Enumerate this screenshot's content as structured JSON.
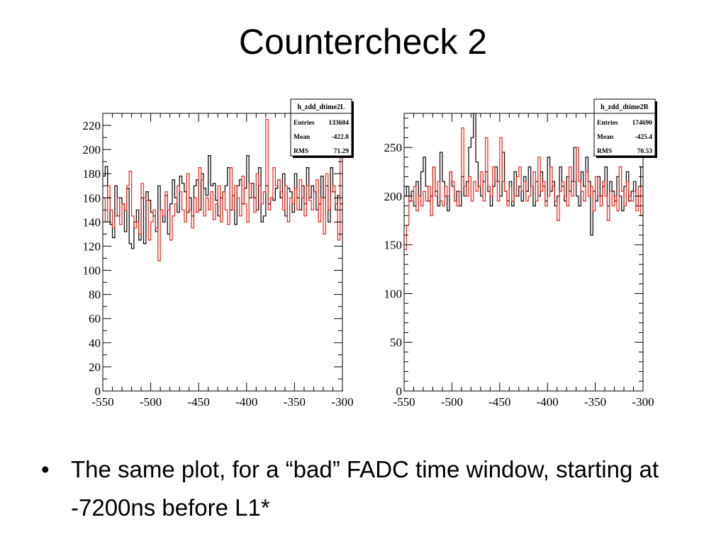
{
  "slide": {
    "title": "Countercheck 2",
    "bullet": "The same plot, for a “bad” FADC time window, starting at -7200ns before L1*"
  },
  "colors": {
    "series_black": "#111111",
    "series_red": "#e8342c",
    "frame": "#000000"
  },
  "chart_data": [
    {
      "type": "histogram",
      "title": "",
      "xlabel": "",
      "ylabel": "",
      "xlim": [
        -550,
        -300
      ],
      "ylim": [
        0,
        230
      ],
      "xticks": [
        -550,
        -500,
        -450,
        -400,
        -350,
        -300
      ],
      "yticks": [
        0,
        20,
        40,
        60,
        80,
        100,
        120,
        140,
        160,
        180,
        200,
        220
      ],
      "stats_box": {
        "name": "h_zdd_dtime2L",
        "rows": [
          {
            "label": "Entries",
            "value": "133604"
          },
          {
            "label": "Mean",
            "value": "-422.8"
          },
          {
            "label": "RMS",
            "value": "71.29"
          }
        ]
      },
      "bins": {
        "start": -550,
        "width": 2.5
      },
      "series": [
        {
          "color": "black",
          "values": [
            178,
            186,
            160,
            138,
            127,
            170,
            145,
            160,
            155,
            132,
            168,
            122,
            118,
            140,
            150,
            125,
            160,
            122,
            165,
            158,
            148,
            145,
            132,
            170,
            150,
            140,
            162,
            130,
            155,
            175,
            160,
            148,
            178,
            172,
            165,
            148,
            160,
            145,
            170,
            175,
            150,
            180,
            168,
            162,
            195,
            170,
            172,
            158,
            145,
            160,
            165,
            170,
            185,
            150,
            162,
            138,
            170,
            175,
            155,
            168,
            195,
            160,
            172,
            160,
            150,
            185,
            140,
            145,
            170,
            155,
            160,
            158,
            168,
            175,
            160,
            180,
            145,
            168,
            165,
            148,
            180,
            160,
            150,
            170,
            155,
            185,
            160,
            170,
            165,
            150,
            155,
            178,
            160,
            170,
            140,
            185,
            165,
            150,
            162,
            155
          ]
        },
        {
          "color": "red",
          "values": [
            160,
            140,
            170,
            150,
            135,
            145,
            160,
            138,
            155,
            150,
            170,
            182,
            145,
            135,
            140,
            130,
            172,
            160,
            158,
            125,
            140,
            150,
            135,
            108,
            150,
            145,
            165,
            150,
            125,
            145,
            155,
            170,
            165,
            150,
            140,
            180,
            150,
            135,
            160,
            148,
            185,
            175,
            145,
            160,
            150,
            165,
            142,
            155,
            170,
            140,
            165,
            150,
            138,
            185,
            150,
            170,
            160,
            145,
            178,
            155,
            140,
            172,
            160,
            148,
            180,
            170,
            155,
            165,
            225,
            150,
            160,
            185,
            170,
            175,
            165,
            150,
            170,
            140,
            160,
            155,
            168,
            150,
            175,
            160,
            145,
            170,
            158,
            150,
            165,
            175,
            140,
            160,
            130,
            180,
            150,
            165,
            170,
            155,
            125,
            200
          ]
        }
      ]
    },
    {
      "type": "histogram",
      "title": "",
      "xlabel": "",
      "ylabel": "",
      "xlim": [
        -550,
        -300
      ],
      "ylim": [
        0,
        285
      ],
      "xticks": [
        -550,
        -500,
        -450,
        -400,
        -350,
        -300
      ],
      "yticks": [
        0,
        50,
        100,
        150,
        200,
        250
      ],
      "stats_box": {
        "name": "h_zdd_dtime2R",
        "rows": [
          {
            "label": "Entries",
            "value": "174690"
          },
          {
            "label": "Mean",
            "value": "-425.4"
          },
          {
            "label": "RMS",
            "value": "70.53"
          }
        ]
      },
      "bins": {
        "start": -550,
        "width": 2.5
      },
      "series": [
        {
          "color": "black",
          "values": [
            200,
            210,
            195,
            205,
            190,
            215,
            200,
            225,
            240,
            210,
            195,
            200,
            230,
            205,
            190,
            245,
            215,
            200,
            185,
            225,
            210,
            195,
            205,
            190,
            220,
            200,
            215,
            250,
            260,
            285,
            235,
            210,
            200,
            215,
            225,
            205,
            190,
            210,
            230,
            215,
            200,
            245,
            205,
            195,
            215,
            190,
            225,
            200,
            210,
            195,
            220,
            205,
            230,
            210,
            190,
            215,
            200,
            225,
            210,
            195,
            240,
            205,
            215,
            190,
            200,
            230,
            210,
            195,
            220,
            205,
            215,
            250,
            200,
            190,
            225,
            210,
            240,
            215,
            160,
            205,
            195,
            220,
            200,
            210,
            230,
            190,
            215,
            205,
            195,
            220,
            200,
            185,
            210,
            225,
            195,
            205,
            215,
            190,
            200,
            230
          ]
        },
        {
          "color": "red",
          "values": [
            145,
            170,
            200,
            195,
            210,
            185,
            200,
            190,
            205,
            195,
            210,
            180,
            230,
            200,
            215,
            195,
            190,
            210,
            200,
            225,
            215,
            195,
            190,
            205,
            270,
            210,
            200,
            220,
            195,
            215,
            205,
            210,
            225,
            195,
            260,
            210,
            200,
            230,
            215,
            195,
            260,
            215,
            205,
            190,
            210,
            195,
            200,
            220,
            230,
            205,
            215,
            195,
            200,
            210,
            225,
            195,
            240,
            205,
            215,
            190,
            200,
            230,
            210,
            195,
            175,
            205,
            215,
            200,
            190,
            230,
            200,
            215,
            250,
            215,
            205,
            195,
            225,
            200,
            210,
            185,
            220,
            200,
            190,
            215,
            200,
            175,
            205,
            190,
            200,
            185,
            230,
            205,
            190,
            215,
            200,
            195,
            205,
            185,
            210,
            180
          ]
        }
      ]
    }
  ]
}
